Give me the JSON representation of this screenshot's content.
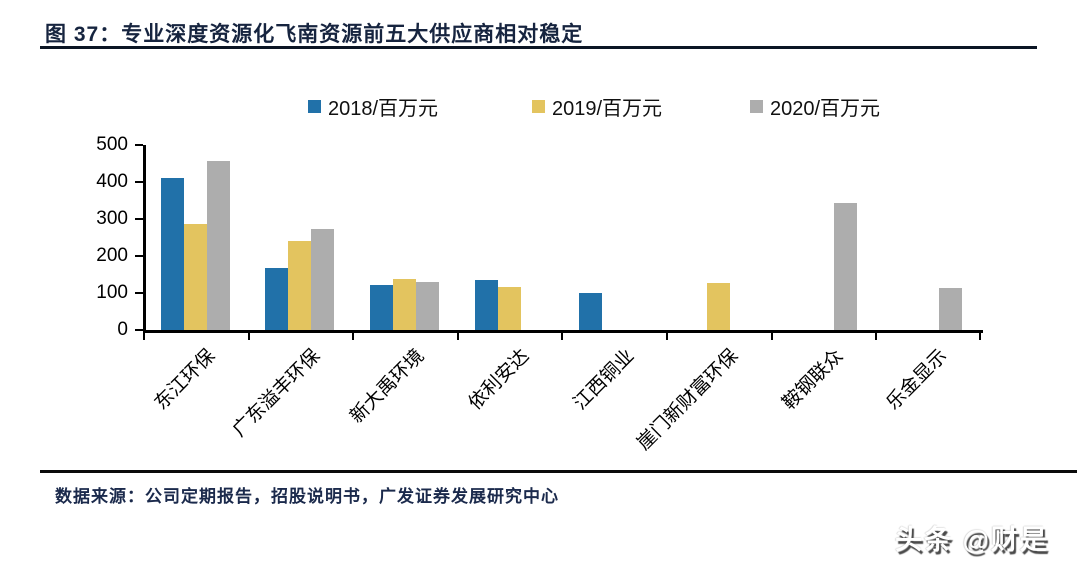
{
  "figure": {
    "title": "图 37：专业深度资源化飞南资源前五大供应商相对稳定",
    "source_note": "数据来源：公司定期报告，招股说明书，广发证券发展研究中心",
    "watermark": "头条 @财是"
  },
  "colors": {
    "series_2018": "#2171A9",
    "series_2019": "#E3C45F",
    "series_2020": "#ADADAD",
    "title_navy": "#16243f",
    "axis_black": "#000000"
  },
  "chart_data": {
    "type": "bar",
    "title": "图 37：专业深度资源化飞南资源前五大供应商相对稳定",
    "categories": [
      "东江环保",
      "广东溢丰环保",
      "新大禹环境",
      "依利安达",
      "江西铜业",
      "崖门新财富环保",
      "鞍钢联众",
      "乐金显示"
    ],
    "series": [
      {
        "name": "2018/百万元",
        "color": "#2171A9",
        "values": [
          411,
          168,
          122,
          134,
          100,
          null,
          null,
          null
        ]
      },
      {
        "name": "2019/百万元",
        "color": "#E3C45F",
        "values": [
          287,
          241,
          137,
          117,
          null,
          127,
          null,
          null
        ]
      },
      {
        "name": "2020/百万元",
        "color": "#ADADAD",
        "values": [
          458,
          273,
          131,
          null,
          null,
          null,
          343,
          114
        ]
      }
    ],
    "xlabel": "",
    "ylabel": "",
    "ylim": [
      0,
      500
    ],
    "yticks": [
      0,
      100,
      200,
      300,
      400,
      500
    ],
    "grid": false,
    "legend_position": "top"
  }
}
